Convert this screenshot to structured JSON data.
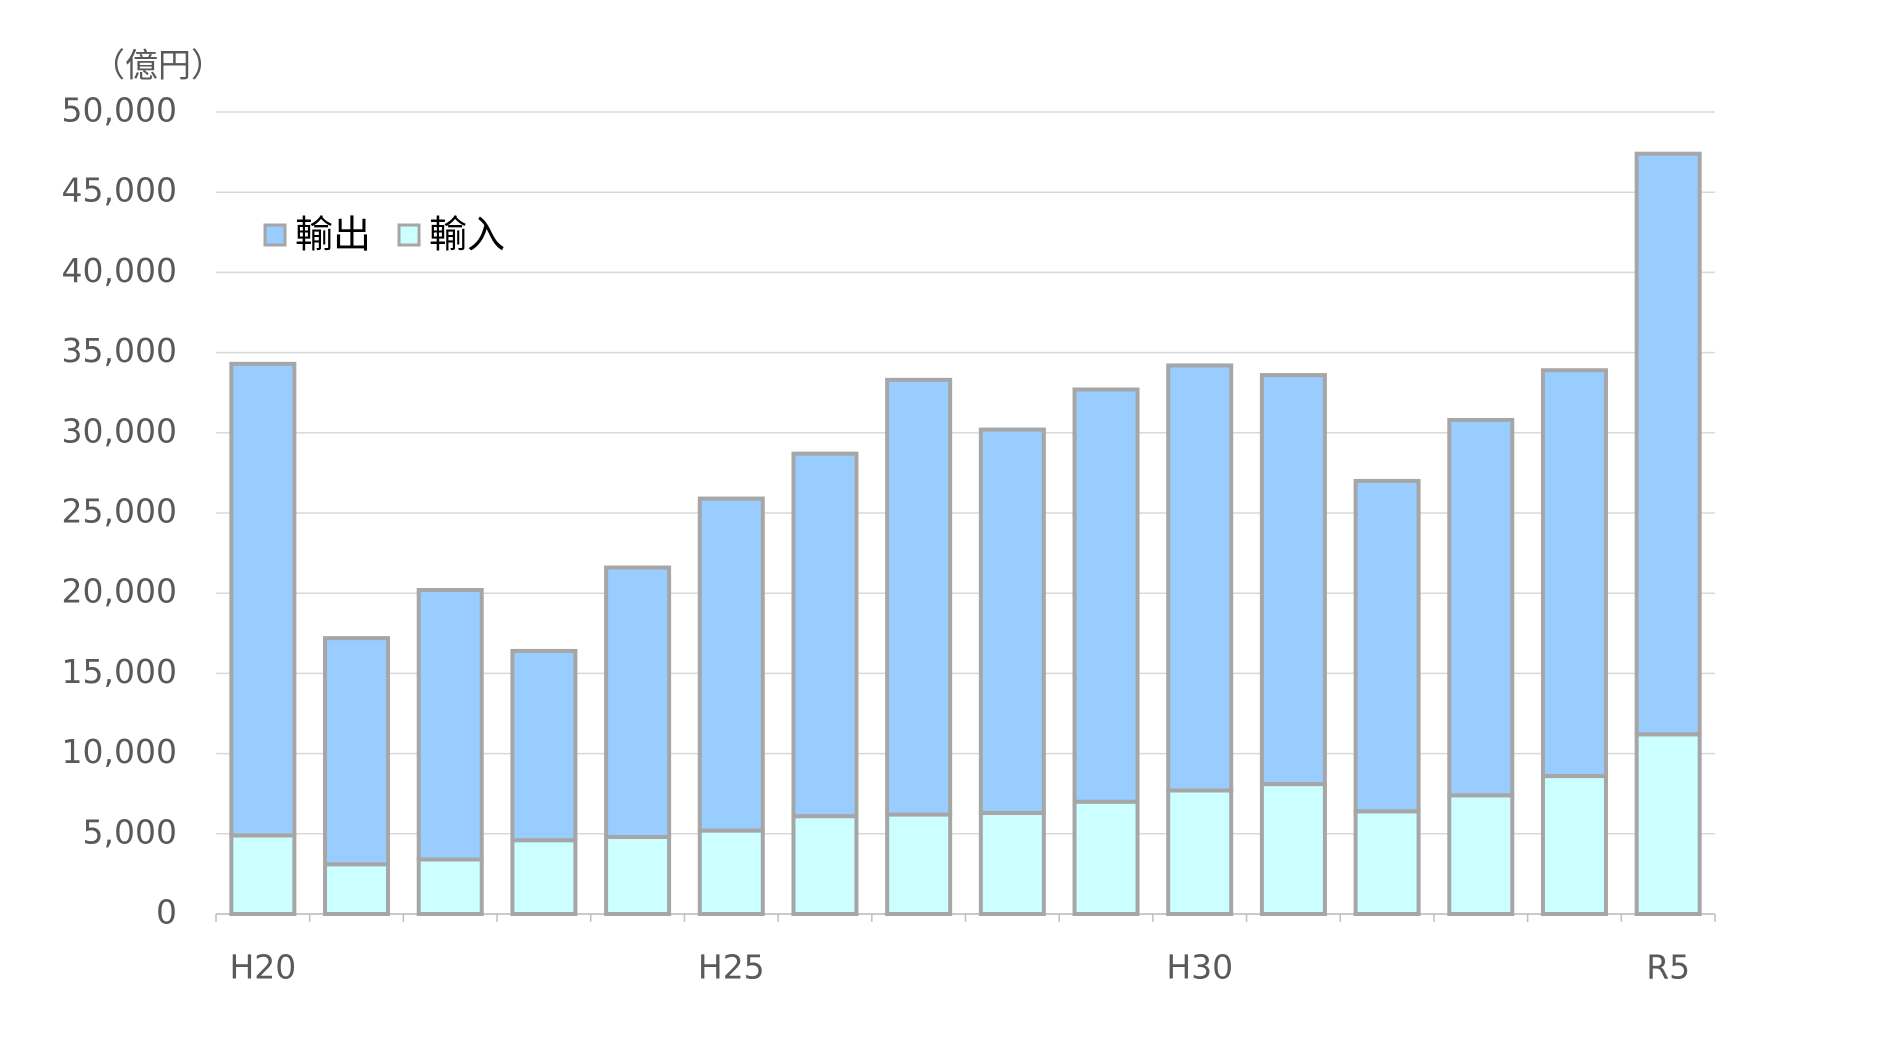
{
  "chart_data": {
    "type": "stacked_bar",
    "y_label": "（億円）",
    "categories": [
      "H20",
      null,
      null,
      null,
      null,
      "H25",
      null,
      null,
      null,
      null,
      "H30",
      null,
      null,
      null,
      null,
      "R5"
    ],
    "series": [
      {
        "name": "輸出",
        "color": "#99ccff",
        "values": [
          29400,
          14100,
          16800,
          11800,
          16800,
          20700,
          22600,
          27100,
          23900,
          25700,
          26500,
          25500,
          20600,
          23400,
          25300,
          36200
        ]
      },
      {
        "name": "輸入",
        "color": "#ccffff",
        "values": [
          4900,
          3100,
          3400,
          4600,
          4800,
          5200,
          6100,
          6200,
          6300,
          7000,
          7700,
          8100,
          6400,
          7400,
          8600,
          11200
        ]
      }
    ],
    "stack_order": [
      "輸入",
      "輸出"
    ],
    "ylim": [
      0,
      50000
    ],
    "yticks": [
      0,
      {
        "value": 5000,
        "label": "5,000"
      },
      {
        "value": 10000,
        "label": "10,000"
      },
      {
        "value": 15000,
        "label": "15,000"
      },
      {
        "value": 20000,
        "label": "20,000"
      },
      {
        "value": 25000,
        "label": "25,000"
      },
      {
        "value": 30000,
        "label": "30,000"
      },
      {
        "value": 35000,
        "label": "35,000"
      },
      {
        "value": 40000,
        "label": "40,000"
      },
      {
        "value": 45000,
        "label": "45,000"
      },
      {
        "value": 50000,
        "label": "50,000"
      }
    ],
    "grid": true,
    "legend": "upper left"
  }
}
